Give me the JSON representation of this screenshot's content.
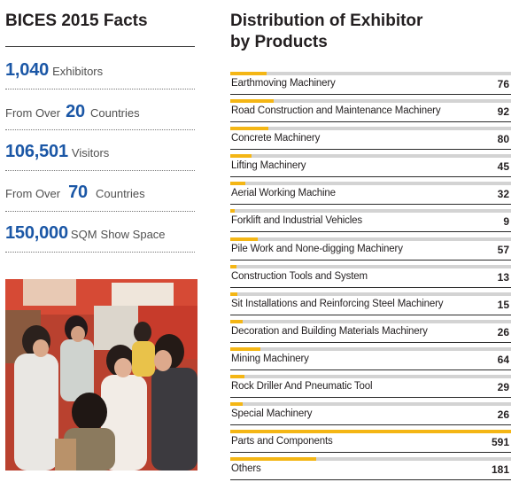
{
  "facts": {
    "title": "BICES 2015 Facts",
    "exhibitors": {
      "number": "1,040",
      "label": "Exhibitors"
    },
    "exhibitor_countries": {
      "prefix": "From Over",
      "number": "20",
      "suffix": "Countries"
    },
    "visitors": {
      "number": "106,501",
      "label": "Visitors"
    },
    "visitor_countries": {
      "prefix": "From Over",
      "number": "70",
      "suffix": "Countries"
    },
    "space": {
      "number": "150,000",
      "unit": "SQM",
      "label": "Show Space"
    }
  },
  "distribution": {
    "title_line1": "Distribution of Exhibitor",
    "title_line2": "by Products",
    "bar_color": "#f4b615",
    "track_color": "#d3d3d3"
  },
  "chart_data": {
    "type": "bar",
    "categories": [
      "Earthmoving Machinery",
      "Road Construction and Maintenance Machinery",
      "Concrete Machinery",
      "Lifting Machinery",
      "Aerial Working Machine",
      "Forklift and Industrial Vehicles",
      "Pile Work and None-digging Machinery",
      "Construction Tools and System",
      "Sit Installations and Reinforcing Steel Machinery",
      "Decoration and Building Materials Machinery",
      "Mining Machinery",
      "Rock Driller And Pneumatic Tool",
      "Special Machinery",
      "Parts and Components",
      "Others"
    ],
    "values": [
      76,
      92,
      80,
      45,
      32,
      9,
      57,
      13,
      15,
      26,
      64,
      29,
      26,
      591,
      181
    ],
    "title": "Distribution of Exhibitor by Products"
  }
}
